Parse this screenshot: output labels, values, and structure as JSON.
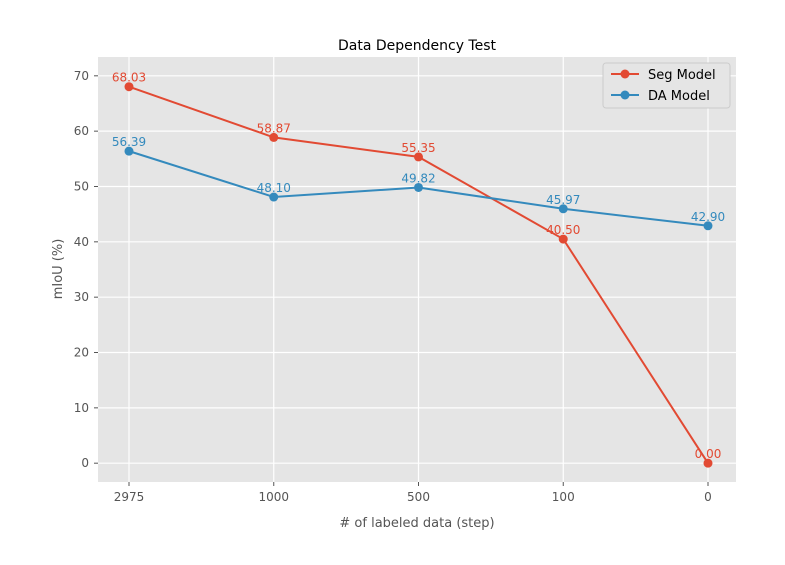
{
  "chart_data": {
    "type": "line",
    "title": "Data Dependency Test",
    "xlabel": "# of labeled data (step)",
    "ylabel": "mIoU (%)",
    "categories": [
      "2975",
      "1000",
      "500",
      "100",
      "0"
    ],
    "ylim": [
      -3.4,
      73.4
    ],
    "yticks": [
      0,
      10,
      20,
      30,
      40,
      50,
      60,
      70
    ],
    "grid": true,
    "legend_position": "top-right",
    "series": [
      {
        "name": "Seg Model",
        "color": "#e24a33",
        "values": [
          68.03,
          58.87,
          55.35,
          40.5,
          0.0
        ],
        "labels": [
          "68.03",
          "58.87",
          "55.35",
          "40.50",
          "0.00"
        ]
      },
      {
        "name": "DA Model",
        "color": "#348abd",
        "values": [
          56.39,
          48.1,
          49.82,
          45.97,
          42.9
        ],
        "labels": [
          "56.39",
          "48.10",
          "49.82",
          "45.97",
          "42.90"
        ]
      }
    ]
  }
}
